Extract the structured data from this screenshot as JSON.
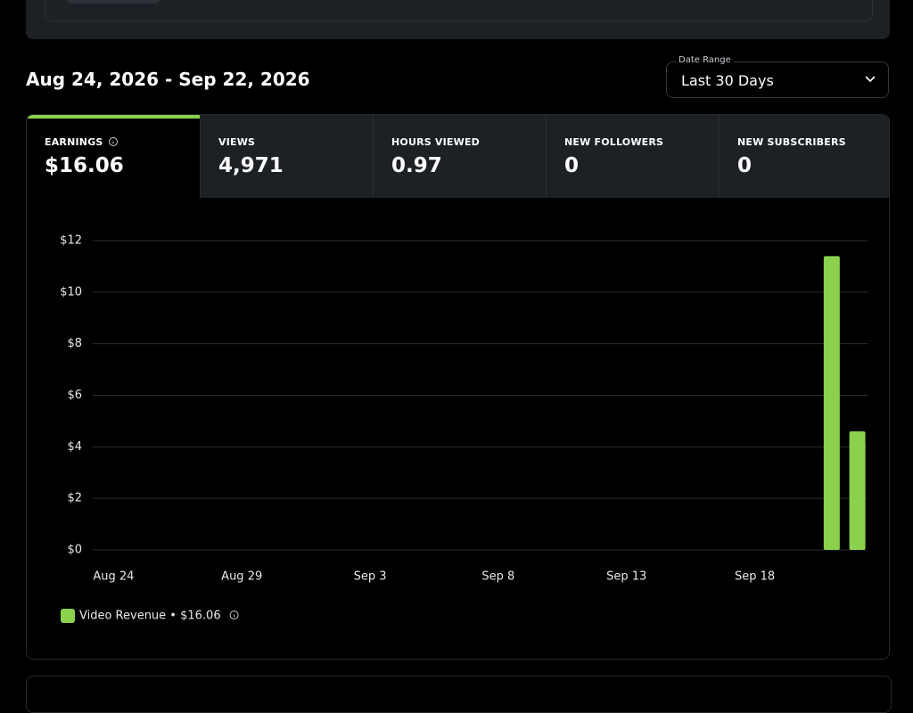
{
  "header": {
    "date_span": "Aug 24, 2026 - Sep 22, 2026",
    "date_range_label": "Date Range",
    "date_range_value": "Last 30 Days"
  },
  "tabs": [
    {
      "label": "EARNINGS",
      "value": "$16.06"
    },
    {
      "label": "VIEWS",
      "value": "4,971"
    },
    {
      "label": "HOURS VIEWED",
      "value": "0.97"
    },
    {
      "label": "NEW FOLLOWERS",
      "value": "0"
    },
    {
      "label": "NEW SUBSCRIBERS",
      "value": "0"
    }
  ],
  "chart_data": {
    "type": "bar",
    "categories": [
      "Aug 24",
      null,
      null,
      null,
      null,
      "Aug 29",
      null,
      null,
      null,
      null,
      "Sep 3",
      null,
      null,
      null,
      null,
      "Sep 8",
      null,
      null,
      null,
      null,
      "Sep 13",
      null,
      null,
      null,
      null,
      "Sep 18",
      null,
      null,
      null,
      null
    ],
    "series": [
      {
        "name": "Video Revenue • $16.06",
        "color": "#8bd14e",
        "values": [
          0,
          0,
          0,
          0,
          0,
          0,
          0,
          0,
          0,
          0,
          0,
          0,
          0,
          0,
          0,
          0,
          0,
          0,
          0,
          0,
          0,
          0,
          0,
          0,
          0,
          0,
          0,
          0,
          11.4,
          4.6
        ]
      }
    ],
    "ylim": [
      0,
      12
    ],
    "yticks": [
      {
        "value": 0,
        "label": "$0"
      },
      {
        "value": 2,
        "label": "$2"
      },
      {
        "value": 4,
        "label": "$4"
      },
      {
        "value": 6,
        "label": "$6"
      },
      {
        "value": 8,
        "label": "$8"
      },
      {
        "value": 10,
        "label": "$10"
      },
      {
        "value": 12,
        "label": "$12"
      }
    ],
    "grid": true
  }
}
